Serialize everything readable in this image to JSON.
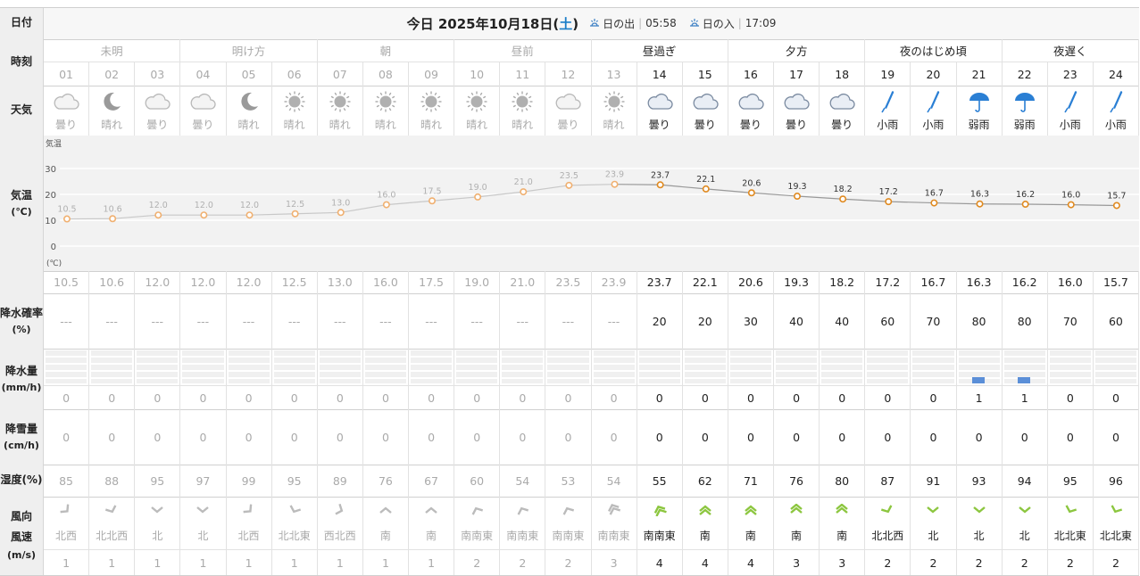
{
  "labels": {
    "date": "日付",
    "time": "時刻",
    "weather": "天気",
    "temp": "気温",
    "temp_unit": "(℃)",
    "precip_prob": "降水確率",
    "precip_prob_unit": "(%)",
    "precip": "降水量",
    "precip_unit": "(mm/h)",
    "snow": "降雪量",
    "snow_unit": "(cm/h)",
    "humidity": "湿度(%)",
    "wind_dir": "風向",
    "wind_speed": "風速",
    "wind_unit": "(m/s)"
  },
  "header": {
    "date_prefix": "今日 2025年10月18日(",
    "day": "土",
    "date_suffix": ")",
    "sunrise_label": "日の出",
    "sunrise_time": "05:58",
    "sunset_label": "日の入",
    "sunset_time": "17:09"
  },
  "periods": [
    {
      "label": "未明",
      "span": 3,
      "past": true
    },
    {
      "label": "明け方",
      "span": 3,
      "past": true
    },
    {
      "label": "朝",
      "span": 3,
      "past": true
    },
    {
      "label": "昼前",
      "span": 3,
      "past": true
    },
    {
      "label": "昼過ぎ",
      "span": 3,
      "past": false
    },
    {
      "label": "夕方",
      "span": 3,
      "past": false
    },
    {
      "label": "夜のはじめ頃",
      "span": 3,
      "past": false
    },
    {
      "label": "夜遅く",
      "span": 3,
      "past": false
    }
  ],
  "hours": [
    "01",
    "02",
    "03",
    "04",
    "05",
    "06",
    "07",
    "08",
    "09",
    "10",
    "11",
    "12",
    "13",
    "14",
    "15",
    "16",
    "17",
    "18",
    "19",
    "20",
    "21",
    "22",
    "23",
    "24"
  ],
  "past_count": 13,
  "weather": [
    {
      "icon": "cloud-icon",
      "text": "曇り"
    },
    {
      "icon": "moon-icon",
      "text": "晴れ"
    },
    {
      "icon": "cloud-icon",
      "text": "曇り"
    },
    {
      "icon": "cloud-icon",
      "text": "曇り"
    },
    {
      "icon": "moon-icon",
      "text": "晴れ"
    },
    {
      "icon": "sun-icon",
      "text": "晴れ"
    },
    {
      "icon": "sun-icon",
      "text": "晴れ"
    },
    {
      "icon": "sun-icon",
      "text": "晴れ"
    },
    {
      "icon": "sun-icon",
      "text": "晴れ"
    },
    {
      "icon": "sun-icon",
      "text": "晴れ"
    },
    {
      "icon": "sun-icon",
      "text": "晴れ"
    },
    {
      "icon": "cloud-icon",
      "text": "曇り"
    },
    {
      "icon": "sun-icon",
      "text": "晴れ"
    },
    {
      "icon": "cloud-icon",
      "text": "曇り"
    },
    {
      "icon": "cloud-icon",
      "text": "曇り"
    },
    {
      "icon": "cloud-icon",
      "text": "曇り"
    },
    {
      "icon": "cloud-icon",
      "text": "曇り"
    },
    {
      "icon": "cloud-icon",
      "text": "曇り"
    },
    {
      "icon": "closed-umbrella-icon",
      "text": "小雨"
    },
    {
      "icon": "closed-umbrella-icon",
      "text": "小雨"
    },
    {
      "icon": "umbrella-icon",
      "text": "弱雨"
    },
    {
      "icon": "umbrella-icon",
      "text": "弱雨"
    },
    {
      "icon": "closed-umbrella-icon",
      "text": "小雨"
    },
    {
      "icon": "closed-umbrella-icon",
      "text": "小雨"
    }
  ],
  "temps": [
    "10.5",
    "10.6",
    "12.0",
    "12.0",
    "12.0",
    "12.5",
    "13.0",
    "16.0",
    "17.5",
    "19.0",
    "21.0",
    "23.5",
    "23.9",
    "23.7",
    "22.1",
    "20.6",
    "19.3",
    "18.2",
    "17.2",
    "16.7",
    "16.3",
    "16.2",
    "16.0",
    "15.7"
  ],
  "chart_data": {
    "type": "line",
    "title": "",
    "ylabel": "気温",
    "yunit": "(℃)",
    "ylim": [
      0,
      30
    ],
    "yticks": [
      "30",
      "20",
      "10",
      "0"
    ],
    "x": [
      "01",
      "02",
      "03",
      "04",
      "05",
      "06",
      "07",
      "08",
      "09",
      "10",
      "11",
      "12",
      "13",
      "14",
      "15",
      "16",
      "17",
      "18",
      "19",
      "20",
      "21",
      "22",
      "23",
      "24"
    ],
    "values": [
      10.5,
      10.6,
      12.0,
      12.0,
      12.0,
      12.5,
      13.0,
      16.0,
      17.5,
      19.0,
      21.0,
      23.5,
      23.9,
      23.7,
      22.1,
      20.6,
      19.3,
      18.2,
      17.2,
      16.7,
      16.3,
      16.2,
      16.0,
      15.7
    ],
    "grid": true,
    "past_color": "#f0b070",
    "future_color": "#e08a20"
  },
  "precip_prob": [
    "---",
    "---",
    "---",
    "---",
    "---",
    "---",
    "---",
    "---",
    "---",
    "---",
    "---",
    "---",
    "---",
    "20",
    "20",
    "30",
    "40",
    "40",
    "60",
    "70",
    "80",
    "80",
    "70",
    "60"
  ],
  "precip": [
    "0",
    "0",
    "0",
    "0",
    "0",
    "0",
    "0",
    "0",
    "0",
    "0",
    "0",
    "0",
    "0",
    "0",
    "0",
    "0",
    "0",
    "0",
    "0",
    "0",
    "1",
    "1",
    "0",
    "0"
  ],
  "precip_bars": [
    0,
    0,
    0,
    0,
    0,
    0,
    0,
    0,
    0,
    0,
    0,
    0,
    0,
    0,
    0,
    0,
    0,
    0,
    0,
    0,
    1,
    1,
    0,
    0
  ],
  "snow": [
    "0",
    "0",
    "0",
    "0",
    "0",
    "0",
    "0",
    "0",
    "0",
    "0",
    "0",
    "0",
    "0",
    "0",
    "0",
    "0",
    "0",
    "0",
    "0",
    "0",
    "0",
    "0",
    "0",
    "0"
  ],
  "humidity": [
    "85",
    "88",
    "95",
    "97",
    "99",
    "95",
    "89",
    "76",
    "67",
    "60",
    "54",
    "53",
    "54",
    "55",
    "62",
    "71",
    "76",
    "80",
    "87",
    "91",
    "93",
    "94",
    "95",
    "96"
  ],
  "wind_dir": [
    "北西",
    "北北西",
    "北",
    "北",
    "北西",
    "北北東",
    "西北西",
    "南",
    "南",
    "南南東",
    "南南東",
    "南南東",
    "南南東",
    "南南東",
    "南",
    "南",
    "南",
    "南",
    "北北西",
    "北",
    "北",
    "北",
    "北北東",
    "北北東"
  ],
  "wind_speed": [
    "1",
    "1",
    "1",
    "1",
    "1",
    "1",
    "1",
    "1",
    "1",
    "2",
    "2",
    "2",
    "3",
    "4",
    "4",
    "4",
    "3",
    "3",
    "2",
    "2",
    "2",
    "2",
    "2",
    "2"
  ],
  "colors": {
    "past_text": "#aaaaaa",
    "future_text": "#222222",
    "wind_green": "#8cc63f",
    "wind_gray": "#bbbbbb",
    "rain_blue": "#5b8fd8",
    "saturday_blue": "#1b7ec8"
  }
}
